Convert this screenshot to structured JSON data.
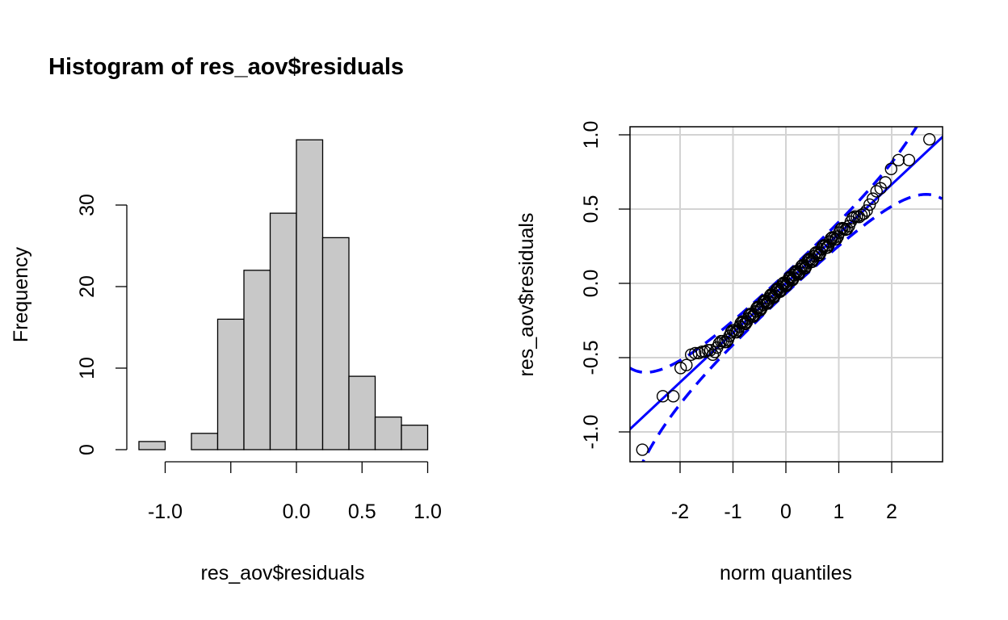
{
  "chart_data": [
    {
      "type": "bar",
      "subtype": "histogram",
      "title": "Histogram of res_aov$residuals",
      "xlabel": "res_aov$residuals",
      "ylabel": "Frequency",
      "bin_edges": [
        -1.2,
        -1.0,
        -0.8,
        -0.6,
        -0.4,
        -0.2,
        0.0,
        0.2,
        0.4,
        0.6,
        0.8,
        1.0
      ],
      "values": [
        1,
        0,
        2,
        16,
        22,
        29,
        38,
        26,
        9,
        4,
        3
      ],
      "xticks": [
        -1.0,
        -0.5,
        0.0,
        0.5,
        1.0
      ],
      "xtick_labels": [
        "-1.0",
        "",
        "0.0",
        "0.5",
        "1.0"
      ],
      "yticks": [
        0,
        10,
        20,
        30
      ],
      "ytick_labels": [
        "0",
        "10",
        "20",
        "30"
      ],
      "bar_color": "#c8c8c8"
    },
    {
      "type": "scatter",
      "subtype": "qq",
      "xlabel": "norm quantiles",
      "ylabel": "res_aov$residuals",
      "n": 150,
      "xlim": [
        -2.95,
        2.95
      ],
      "ylim": [
        -1.2,
        1.05
      ],
      "xticks": [
        -2,
        -1,
        0,
        1,
        2
      ],
      "xtick_labels": [
        "-2",
        "-1",
        "0",
        "1",
        "2"
      ],
      "yticks": [
        -1.0,
        -0.5,
        0.0,
        0.5,
        1.0
      ],
      "ytick_labels": [
        "-1.0",
        "-0.5",
        "0.0",
        "0.5",
        "1.0"
      ],
      "grid": true,
      "reference_line": {
        "intercept": 0.0,
        "slope": 0.333,
        "color": "#0000ff"
      },
      "envelope": {
        "level": 0.95,
        "style": "dashed",
        "color": "#0000ff"
      },
      "low_tail_residuals": [
        -1.12,
        -0.76,
        -0.76,
        -0.57,
        -0.55,
        -0.48,
        -0.47,
        -0.47,
        -0.46,
        -0.46,
        -0.45,
        -0.45
      ],
      "high_tail_residuals": [
        0.97,
        0.83,
        0.83,
        0.77,
        0.68,
        0.64,
        0.62,
        0.57,
        0.53,
        0.49,
        0.47,
        0.46
      ]
    }
  ]
}
